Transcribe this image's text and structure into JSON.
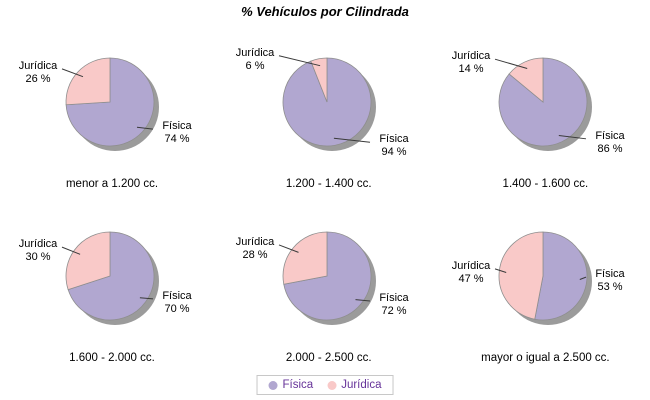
{
  "title": "% Vehículos por Cilindrada",
  "colors": {
    "fisica": "#B1A7D0",
    "juridica": "#F9C9C8",
    "shadow": "#9B9B9B",
    "slice_outline": "#8E8E8E",
    "leader_line": "#3A3A3A",
    "legend_text": "#663399",
    "legend_border": "#C8C8C8",
    "label_text": "#000000",
    "background": "#FFFFFF"
  },
  "legend": {
    "position": "bottom",
    "items": [
      {
        "label": "Física",
        "color": "#B1A7D0"
      },
      {
        "label": "Jurídica",
        "color": "#F9C9C8"
      }
    ]
  },
  "chart_data": {
    "type": "pie",
    "title": "% Vehículos por Cilindrada",
    "slice_labels": [
      "Física",
      "Jurídica"
    ],
    "slice_colors": [
      "#B1A7D0",
      "#F9C9C8"
    ],
    "value_suffix": " %",
    "grid": "3x2",
    "legend_position": "bottom",
    "pies": [
      {
        "category": "menor a 1.200 cc.",
        "values": [
          74,
          26
        ]
      },
      {
        "category": "1.200 - 1.400 cc.",
        "values": [
          94,
          6
        ]
      },
      {
        "category": "1.400 - 1.600 cc.",
        "values": [
          86,
          14
        ]
      },
      {
        "category": "1.600 - 2.000 cc.",
        "values": [
          70,
          30
        ]
      },
      {
        "category": "2.000 - 2.500 cc.",
        "values": [
          72,
          28
        ]
      },
      {
        "category": "mayor o igual a 2.500 cc.",
        "values": [
          53,
          47
        ]
      }
    ]
  }
}
